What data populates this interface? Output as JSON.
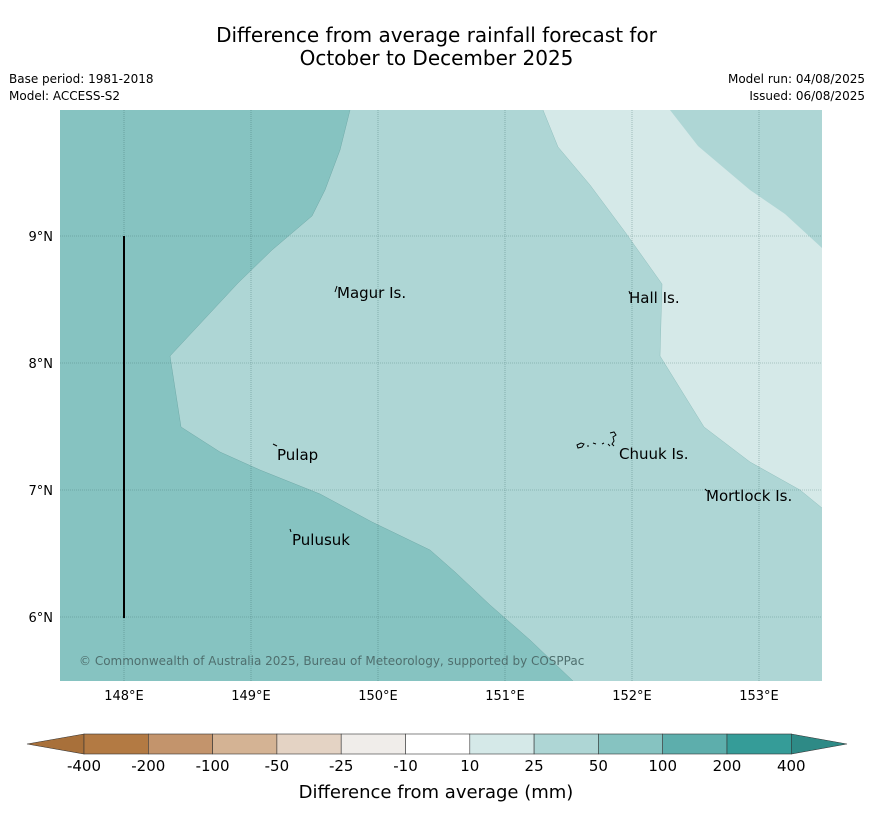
{
  "title": {
    "line1": "Difference from average rainfall forecast for",
    "line2": "October to December 2025"
  },
  "meta": {
    "base_period": "Base period: 1981-2018",
    "model": "Model: ACCESS-S2",
    "model_run": "Model run: 04/08/2025",
    "issued": "Issued: 06/08/2025"
  },
  "map": {
    "lon_ticks": [
      "148°E",
      "149°E",
      "150°E",
      "151°E",
      "152°E",
      "153°E"
    ],
    "lat_ticks": [
      "9°N",
      "8°N",
      "7°N",
      "6°N"
    ],
    "places": [
      {
        "name": "Magur Is."
      },
      {
        "name": "Hall Is."
      },
      {
        "name": "Pulap"
      },
      {
        "name": "Chuuk Is."
      },
      {
        "name": "Mortlock Is."
      },
      {
        "name": "Pulusuk"
      }
    ],
    "copyright": "© Commonwealth of Australia 2025, Bureau of Meteorology, supported by COSPPac",
    "colors": {
      "band_50_100": "#86c3c1",
      "band_25_50": "#aed6d5",
      "band_10_25": "#d5e9e8"
    }
  },
  "legend": {
    "ticks": [
      "-400",
      "-200",
      "-100",
      "-50",
      "-25",
      "-10",
      "10",
      "25",
      "50",
      "100",
      "200",
      "400"
    ],
    "colors": [
      "#a8703a",
      "#b37a43",
      "#c3946c",
      "#d4b394",
      "#e4d3c4",
      "#f0edea",
      "#ffffff",
      "#d5e9e8",
      "#aed6d5",
      "#86c3c1",
      "#5daeac",
      "#359c98",
      "#2e8a86"
    ],
    "label": "Difference from average (mm)"
  }
}
